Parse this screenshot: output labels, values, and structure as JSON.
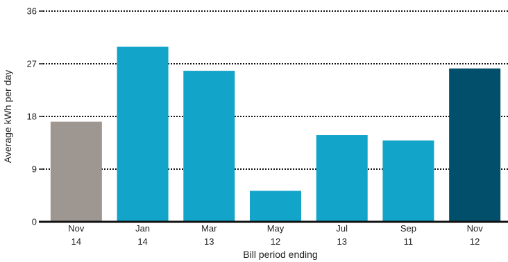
{
  "chart_data": {
    "type": "bar",
    "title": "",
    "xlabel": "Bill period ending",
    "ylabel": "Average kWh per day",
    "ylim": [
      0,
      36
    ],
    "yticks": [
      0,
      9,
      18,
      27,
      36
    ],
    "grid": true,
    "categories": [
      {
        "line1": "Nov",
        "line2": "14"
      },
      {
        "line1": "Jan",
        "line2": "14"
      },
      {
        "line1": "Mar",
        "line2": "13"
      },
      {
        "line1": "May",
        "line2": "12"
      },
      {
        "line1": "Jul",
        "line2": "13"
      },
      {
        "line1": "Sep",
        "line2": "11"
      },
      {
        "line1": "Nov",
        "line2": "12"
      }
    ],
    "values": [
      17.1,
      29.9,
      25.8,
      5.3,
      14.8,
      13.9,
      26.2
    ],
    "colors": [
      "#9e9690",
      "#12a4c9",
      "#12a4c9",
      "#12a4c9",
      "#12a4c9",
      "#12a4c9",
      "#024f6b"
    ],
    "grid_color": "#111111",
    "axis_color": "#111111"
  }
}
